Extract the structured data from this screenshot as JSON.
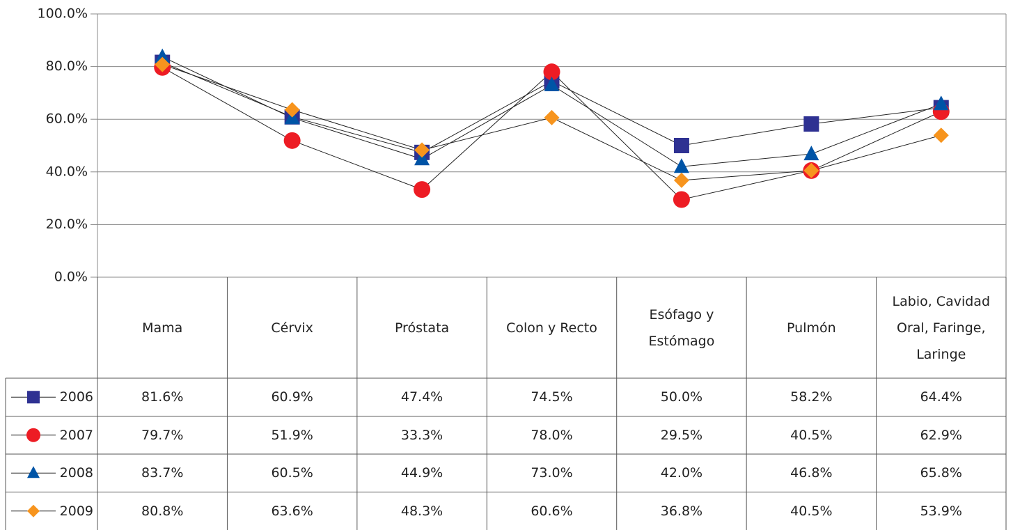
{
  "chart_data": {
    "type": "line",
    "categories": [
      "Mama",
      "Cérvix",
      "Próstata",
      "Colon y Recto",
      "Esófago y Estómago",
      "Pulmón",
      "Labio, Cavidad Oral, Faringe, Laringe"
    ],
    "series": [
      {
        "name": "2006",
        "color": "#2e3192",
        "marker": "square",
        "values": [
          81.6,
          60.9,
          47.4,
          74.5,
          50.0,
          58.2,
          64.4
        ],
        "value_labels": [
          "81.6%",
          "60.9%",
          "47.4%",
          "74.5%",
          "50.0%",
          "58.2%",
          "64.4%"
        ]
      },
      {
        "name": "2007",
        "color": "#ed1c24",
        "marker": "circle",
        "values": [
          79.7,
          51.9,
          33.3,
          78.0,
          29.5,
          40.5,
          62.9
        ],
        "value_labels": [
          "79.7%",
          "51.9%",
          "33.3%",
          "78.0%",
          "29.5%",
          "40.5%",
          "62.9%"
        ]
      },
      {
        "name": "2008",
        "color": "#0054a6",
        "marker": "triangle",
        "values": [
          83.7,
          60.5,
          44.9,
          73.0,
          42.0,
          46.8,
          65.8
        ],
        "value_labels": [
          "83.7%",
          "60.5%",
          "44.9%",
          "73.0%",
          "42.0%",
          "46.8%",
          "65.8%"
        ]
      },
      {
        "name": "2009",
        "color": "#f7941d",
        "marker": "diamond",
        "values": [
          80.8,
          63.6,
          48.3,
          60.6,
          36.8,
          40.5,
          53.9
        ],
        "value_labels": [
          "80.8%",
          "63.6%",
          "48.3%",
          "60.6%",
          "36.8%",
          "40.5%",
          "53.9%"
        ]
      }
    ],
    "ylim": [
      0,
      100
    ],
    "yticks": [
      {
        "value": 0,
        "label": "0.0%"
      },
      {
        "value": 20,
        "label": "20.0%"
      },
      {
        "value": 40,
        "label": "40.0%"
      },
      {
        "value": 60,
        "label": "60.0%"
      },
      {
        "value": 80,
        "label": "80.0%"
      },
      {
        "value": 100,
        "label": "100.0%"
      }
    ],
    "grid": true
  }
}
